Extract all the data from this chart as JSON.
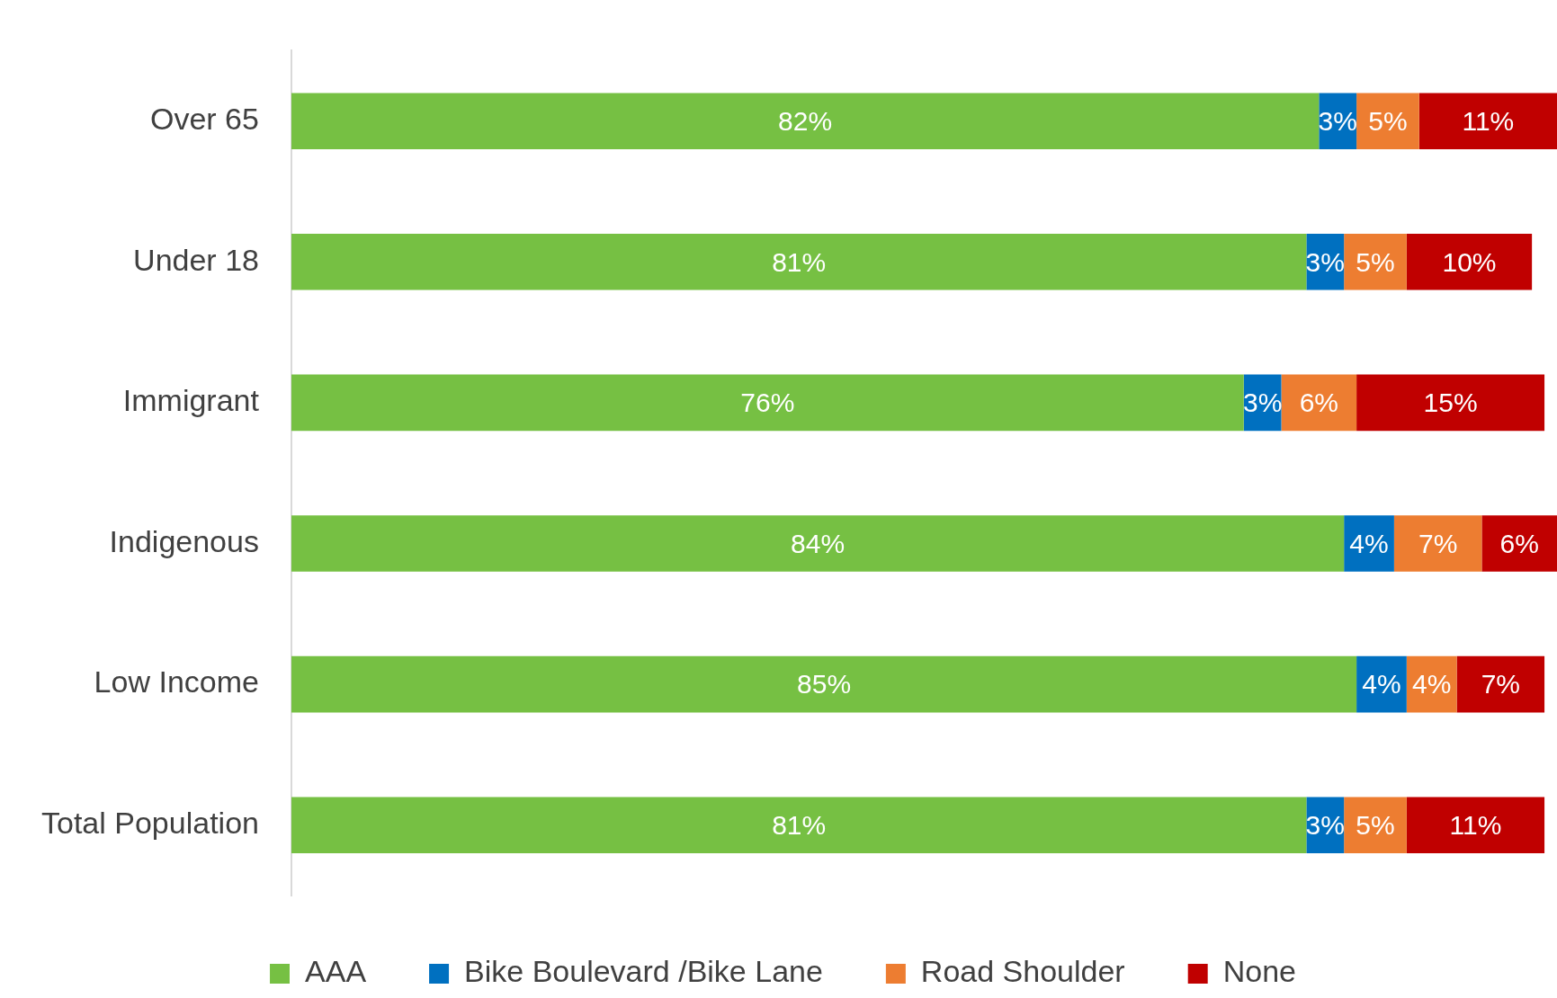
{
  "chart_data": {
    "type": "bar",
    "orientation": "horizontal",
    "stacked": true,
    "tick_labels": "y",
    "legend": "bottom",
    "categories": [
      "Over 65",
      "Under 18",
      "Immigrant",
      "Indigenous",
      "Low Income",
      "Total Population"
    ],
    "series": [
      {
        "name": "AAA",
        "color": "#76c043",
        "values": [
          82,
          81,
          76,
          84,
          85,
          81
        ],
        "value_labels": [
          "82%",
          "81%",
          "76%",
          "84%",
          "85%",
          "81%"
        ]
      },
      {
        "name": "Bike Boulevard /Bike Lane",
        "color": "#0070c0",
        "values": [
          3,
          3,
          3,
          4,
          4,
          3
        ],
        "value_labels": [
          "3%",
          "3%",
          "3%",
          "4%",
          "4%",
          "3%"
        ]
      },
      {
        "name": "Road Shoulder",
        "color": "#ed7d31",
        "values": [
          5,
          5,
          6,
          7,
          4,
          5
        ],
        "value_labels": [
          "5%",
          "5%",
          "6%",
          "7%",
          "4%",
          "5%"
        ]
      },
      {
        "name": "None",
        "color": "#c00000",
        "values": [
          11,
          10,
          15,
          6,
          7,
          11
        ],
        "value_labels": [
          "11%",
          "10%",
          "15%",
          "6%",
          "7%",
          "11%"
        ]
      }
    ]
  }
}
